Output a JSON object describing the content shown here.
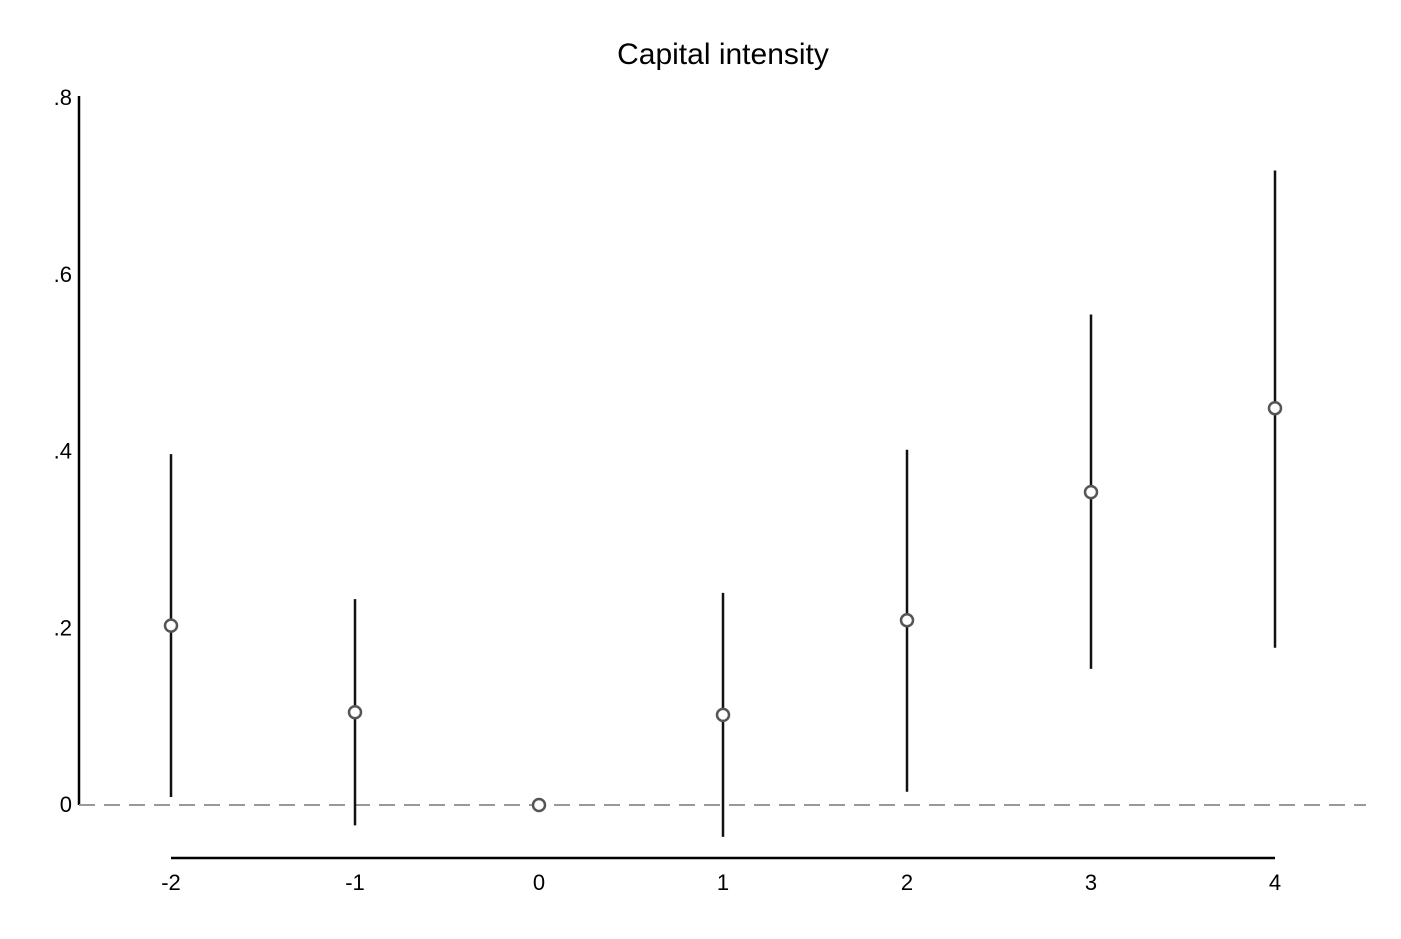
{
  "chart_data": {
    "type": "scatter",
    "title": "Capital intensity",
    "xlabel": "",
    "ylabel": "",
    "x_ticks": [
      "-2",
      "-1",
      "0",
      "1",
      "2",
      "3",
      "4"
    ],
    "y_ticks": [
      {
        "value": 0,
        "label": "0"
      },
      {
        "value": 0.2,
        "label": ".2"
      },
      {
        "value": 0.4,
        "label": ".4"
      },
      {
        "value": 0.6,
        "label": ".6"
      },
      {
        "value": 0.8,
        "label": ".8"
      }
    ],
    "xlim": [
      -2.5,
      4.5
    ],
    "ylim": [
      -0.06,
      0.8
    ],
    "reference_line": {
      "y": 0,
      "style": "dashed",
      "color": "#999999"
    },
    "grid": false,
    "legend": "none",
    "points": [
      {
        "x": -2,
        "estimate": 0.203,
        "ci_low": 0.009,
        "ci_high": 0.397
      },
      {
        "x": -1,
        "estimate": 0.105,
        "ci_low": -0.023,
        "ci_high": 0.233
      },
      {
        "x": 0,
        "estimate": 0.0,
        "ci_low": 0.0,
        "ci_high": 0.0
      },
      {
        "x": 1,
        "estimate": 0.102,
        "ci_low": -0.036,
        "ci_high": 0.24
      },
      {
        "x": 2,
        "estimate": 0.209,
        "ci_low": 0.015,
        "ci_high": 0.402
      },
      {
        "x": 3,
        "estimate": 0.354,
        "ci_low": 0.154,
        "ci_high": 0.555
      },
      {
        "x": 4,
        "estimate": 0.449,
        "ci_low": 0.178,
        "ci_high": 0.718
      }
    ],
    "colors": {
      "ci_line": "#111111",
      "marker": "#555555",
      "reference_line": "#999999",
      "axis": "#000000"
    }
  }
}
